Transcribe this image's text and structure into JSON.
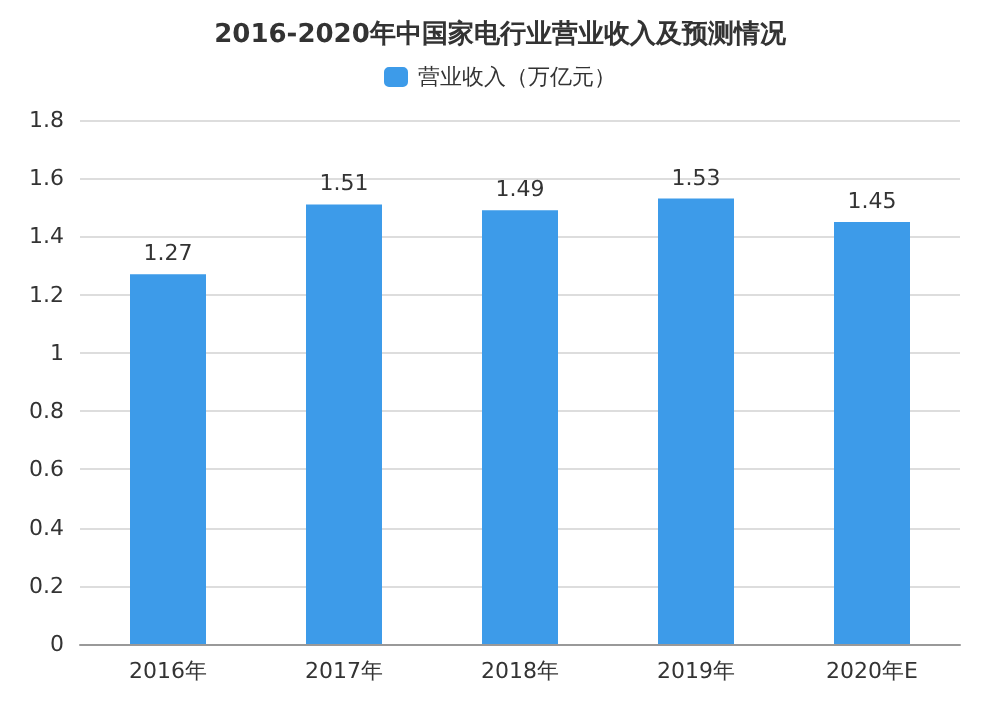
{
  "chart_data": {
    "type": "bar",
    "title": "2016-2020年中国家电行业营业收入及预测情况",
    "categories": [
      "2016年",
      "2017年",
      "2018年",
      "2019年",
      "2020年E"
    ],
    "series": [
      {
        "name": "营业收入（万亿元）",
        "color": "#3d9be9",
        "values": [
          1.27,
          1.51,
          1.49,
          1.53,
          1.45
        ]
      }
    ],
    "ylim": [
      0,
      1.8
    ],
    "yticks": [
      0,
      0.2,
      0.4,
      0.6,
      0.8,
      1,
      1.2,
      1.4,
      1.6,
      1.8
    ],
    "grid": "y",
    "legend": "top",
    "data_labels": true
  }
}
